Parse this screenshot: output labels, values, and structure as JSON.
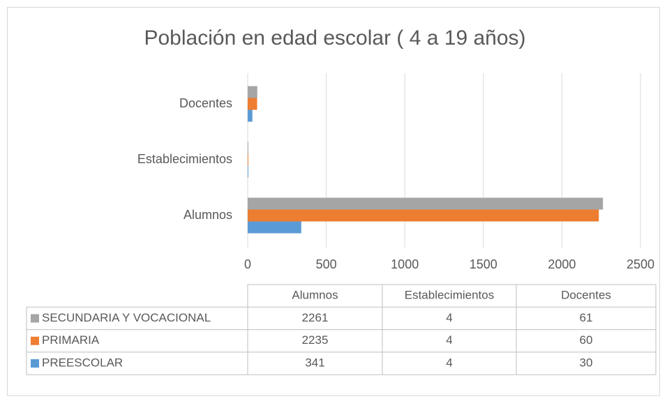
{
  "chart_data": {
    "type": "bar",
    "orientation": "horizontal",
    "title": "Población en edad escolar ( 4 a 19 años)",
    "categories": [
      "Alumnos",
      "Establecimientos",
      "Docentes"
    ],
    "series": [
      {
        "name": "PREESCOLAR",
        "color": "#5b9bd5",
        "values": [
          341,
          4,
          30
        ]
      },
      {
        "name": "PRIMARIA",
        "color": "#ed7d31",
        "values": [
          2235,
          4,
          60
        ]
      },
      {
        "name": "SECUNDARIA Y VOCACIONAL",
        "color": "#a5a5a5",
        "values": [
          2261,
          4,
          61
        ]
      }
    ],
    "xlim": [
      0,
      2500
    ],
    "xticks": [
      0,
      500,
      1000,
      1500,
      2000,
      2500
    ],
    "grid": true
  }
}
